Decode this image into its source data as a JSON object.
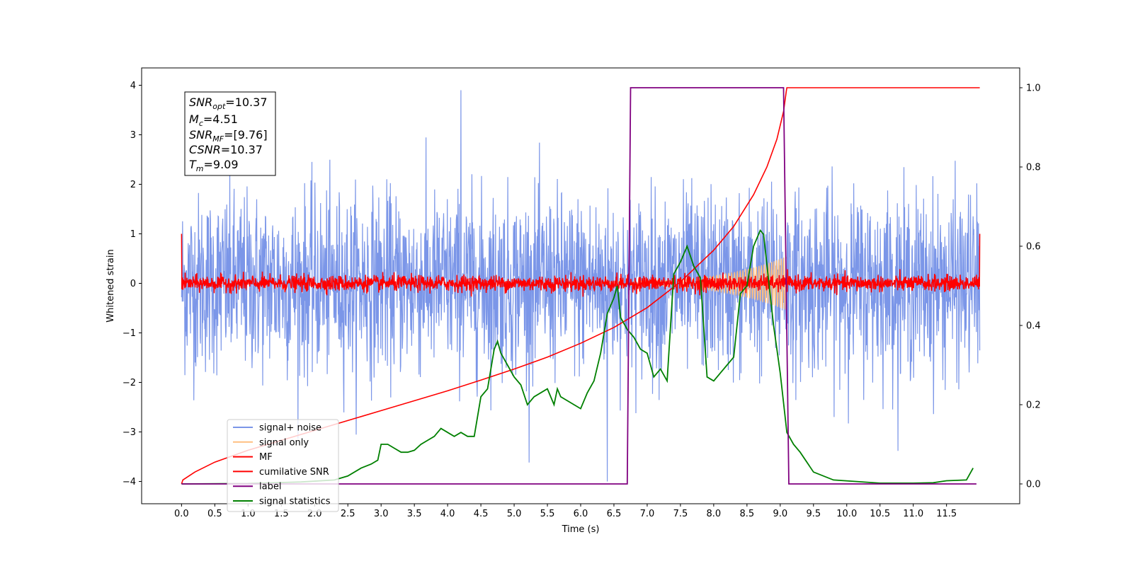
{
  "chart_data": {
    "type": "line",
    "xlabel": "Time (s)",
    "ylabel": "Whitened strain",
    "xlim": [
      -0.6,
      12.6
    ],
    "ylim": [
      -4.45,
      4.35
    ],
    "y2lim": [
      -0.05,
      1.05
    ],
    "x_ticks": [
      "0.0",
      "0.5",
      "1.0",
      "1.5",
      "2.0",
      "2.5",
      "3.0",
      "3.5",
      "4.0",
      "4.5",
      "5.0",
      "5.5",
      "6.0",
      "6.5",
      "7.0",
      "7.5",
      "8.0",
      "8.5",
      "9.0",
      "9.5",
      "10.0",
      "10.5",
      "11.0",
      "11.5"
    ],
    "y_ticks": [
      "4",
      "3",
      "2",
      "1",
      "0",
      "−1",
      "−2",
      "−3",
      "−4"
    ],
    "y2_ticks": [
      "1.0",
      "0.8",
      "0.6",
      "0.4",
      "0.2",
      "0.0"
    ],
    "grid": false,
    "legend_position": "lower-left",
    "info_box": {
      "snr_opt": {
        "base": "SNR",
        "sub": "opt",
        "value": "=10.37"
      },
      "mc": {
        "base": "M",
        "sub": "c",
        "value": "=4.51"
      },
      "snr_mf": {
        "base": "SNR",
        "sub": "MF",
        "value": "=[9.76]"
      },
      "csnr": {
        "base": "CSNR",
        "sub": "",
        "value": "=10.37"
      },
      "tm": {
        "base": "T",
        "sub": "m",
        "value": "=9.09"
      }
    },
    "series": [
      {
        "name": "signal+ noise",
        "axis": "left",
        "color": "#7b96e8",
        "approx": "white noise, std ~0.9, t = 0 to 12.0 s, spikes up to ~3.9 and down to ~-4.0"
      },
      {
        "name": "signal only",
        "axis": "left",
        "color": "#ffbf80",
        "approx": "chirp with amplitude growing from ~0.05 at 6.5 s to ~0.55 at 9.09 s, zero elsewhere"
      },
      {
        "name": "MF",
        "axis": "left",
        "color": "#ff0000",
        "approx": "noise around 0 with std ~0.08, edge values 1.0 at t=0 and t=12.0"
      },
      {
        "name": "cumilative SNR",
        "axis": "right",
        "color": "#ff0000",
        "x": [
          0.0,
          0.02,
          0.2,
          0.5,
          1.0,
          1.5,
          2.0,
          2.5,
          3.0,
          3.5,
          4.0,
          4.5,
          5.0,
          5.5,
          6.0,
          6.5,
          7.0,
          7.5,
          8.0,
          8.3,
          8.6,
          8.8,
          8.95,
          9.05,
          9.09,
          9.1,
          12.0
        ],
        "y": [
          0.0,
          0.01,
          0.03,
          0.055,
          0.085,
          0.11,
          0.135,
          0.16,
          0.185,
          0.21,
          0.235,
          0.262,
          0.29,
          0.32,
          0.355,
          0.395,
          0.445,
          0.51,
          0.59,
          0.65,
          0.73,
          0.8,
          0.87,
          0.94,
          0.99,
          1.0,
          1.0
        ]
      },
      {
        "name": "label",
        "axis": "right",
        "color": "#800080",
        "x": [
          0.0,
          6.7,
          6.75,
          9.05,
          9.13,
          11.95
        ],
        "y": [
          0.0,
          0.0,
          1.0,
          1.0,
          0.0,
          0.0
        ]
      },
      {
        "name": "signal statistics",
        "axis": "right",
        "color": "#008000",
        "x": [
          0.0,
          1.0,
          1.8,
          2.3,
          2.5,
          2.7,
          2.85,
          2.95,
          3.0,
          3.1,
          3.2,
          3.3,
          3.4,
          3.5,
          3.6,
          3.7,
          3.8,
          3.9,
          4.0,
          4.1,
          4.2,
          4.3,
          4.4,
          4.5,
          4.6,
          4.7,
          4.75,
          4.8,
          4.9,
          5.0,
          5.1,
          5.2,
          5.3,
          5.4,
          5.5,
          5.6,
          5.65,
          5.7,
          5.8,
          5.9,
          6.0,
          6.1,
          6.2,
          6.3,
          6.4,
          6.5,
          6.55,
          6.6,
          6.7,
          6.8,
          6.9,
          7.0,
          7.1,
          7.2,
          7.3,
          7.4,
          7.5,
          7.6,
          7.7,
          7.8,
          7.9,
          8.0,
          8.1,
          8.2,
          8.3,
          8.4,
          8.5,
          8.6,
          8.7,
          8.75,
          8.9,
          9.0,
          9.1,
          9.2,
          9.3,
          9.5,
          9.8,
          10.5,
          11.0,
          11.3,
          11.5,
          11.8,
          11.9
        ],
        "y": [
          0.0,
          0.001,
          0.005,
          0.01,
          0.02,
          0.04,
          0.05,
          0.06,
          0.1,
          0.1,
          0.09,
          0.08,
          0.08,
          0.085,
          0.1,
          0.11,
          0.12,
          0.14,
          0.13,
          0.12,
          0.13,
          0.12,
          0.12,
          0.22,
          0.24,
          0.34,
          0.36,
          0.33,
          0.3,
          0.27,
          0.25,
          0.2,
          0.22,
          0.23,
          0.24,
          0.2,
          0.24,
          0.22,
          0.21,
          0.2,
          0.19,
          0.23,
          0.26,
          0.33,
          0.43,
          0.47,
          0.5,
          0.42,
          0.39,
          0.37,
          0.34,
          0.33,
          0.27,
          0.29,
          0.26,
          0.53,
          0.56,
          0.6,
          0.55,
          0.52,
          0.27,
          0.26,
          0.28,
          0.3,
          0.32,
          0.48,
          0.5,
          0.6,
          0.64,
          0.63,
          0.4,
          0.28,
          0.13,
          0.1,
          0.08,
          0.03,
          0.01,
          0.002,
          0.002,
          0.003,
          0.008,
          0.01,
          0.04
        ]
      }
    ]
  }
}
